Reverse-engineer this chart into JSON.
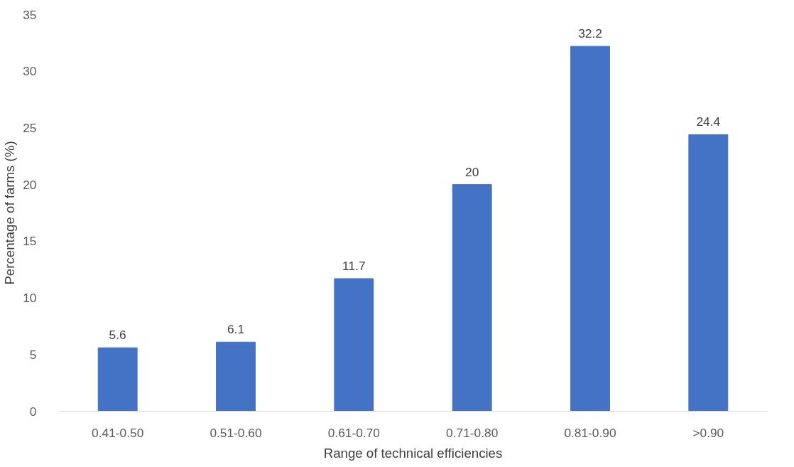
{
  "chart_data": {
    "type": "bar",
    "xlabel": "Range of technical efficiencies",
    "ylabel": "Percentage of farms (%)",
    "categories": [
      "0.41-0.50",
      "0.51-0.60",
      "0.61-0.70",
      "0.71-0.80",
      "0.81-0.90",
      ">0.90"
    ],
    "values": [
      5.6,
      6.1,
      11.7,
      20,
      32.2,
      24.4
    ],
    "color": "#4472c4",
    "ylim": [
      0,
      35
    ],
    "yticks": [
      0,
      5,
      10,
      15,
      20,
      25,
      30,
      35
    ],
    "grid": false,
    "data_labels": true
  }
}
